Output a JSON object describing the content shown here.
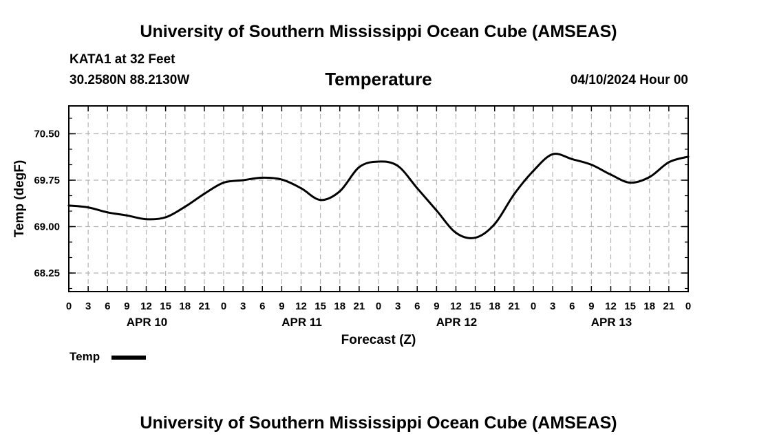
{
  "header": {
    "title_top": "University of Southern Mississippi Ocean Cube (AMSEAS)",
    "station": "KATA1 at 32 Feet",
    "coords": "30.2580N  88.2130W",
    "variable": "Temperature",
    "datetime": "04/10/2024 Hour 00",
    "title_bottom": "University of Southern Mississippi Ocean Cube (AMSEAS)"
  },
  "legend": {
    "label": "Temp",
    "color": "#000000"
  },
  "chart_data": {
    "type": "line",
    "title": "Temperature",
    "xlabel": "Forecast (Z)",
    "ylabel": "Temp (degF)",
    "xlim": [
      0,
      96
    ],
    "ylim": [
      67.95,
      70.95
    ],
    "yticks": [
      68.25,
      69.0,
      69.75,
      70.5
    ],
    "ytick_labels": [
      "68.25",
      "69.00",
      "69.75",
      "70.50"
    ],
    "y_minor_step": 0.25,
    "xtick_hours": [
      0,
      3,
      6,
      9,
      12,
      15,
      18,
      21,
      24,
      27,
      30,
      33,
      36,
      39,
      42,
      45,
      48,
      51,
      54,
      57,
      60,
      63,
      66,
      69,
      72,
      75,
      78,
      81,
      84,
      87,
      90,
      93,
      96
    ],
    "xtick_labels": [
      "0",
      "3",
      "6",
      "9",
      "12",
      "15",
      "18",
      "21",
      "0",
      "3",
      "6",
      "9",
      "12",
      "15",
      "18",
      "21",
      "0",
      "3",
      "6",
      "9",
      "12",
      "15",
      "18",
      "21",
      "0",
      "3",
      "6",
      "9",
      "12",
      "15",
      "18",
      "21",
      "0"
    ],
    "day_labels": [
      {
        "hour": 12,
        "label": "APR 10"
      },
      {
        "hour": 36,
        "label": "APR 11"
      },
      {
        "hour": 60,
        "label": "APR 12"
      },
      {
        "hour": 84,
        "label": "APR 13"
      }
    ],
    "grid": true,
    "series": [
      {
        "name": "Temp",
        "color": "#000000",
        "x": [
          0,
          3,
          6,
          9,
          12,
          15,
          18,
          21,
          24,
          27,
          30,
          33,
          36,
          39,
          42,
          45,
          48,
          51,
          54,
          57,
          60,
          63,
          66,
          69,
          72,
          75,
          78,
          81,
          84,
          87,
          90,
          93,
          96
        ],
        "values": [
          69.34,
          69.31,
          69.23,
          69.18,
          69.12,
          69.15,
          69.32,
          69.53,
          69.71,
          69.75,
          69.79,
          69.76,
          69.62,
          69.43,
          69.57,
          69.96,
          70.05,
          69.98,
          69.62,
          69.26,
          68.9,
          68.82,
          69.04,
          69.52,
          69.9,
          70.17,
          70.09,
          70.0,
          69.84,
          69.71,
          69.8,
          70.04,
          70.13
        ]
      }
    ]
  }
}
